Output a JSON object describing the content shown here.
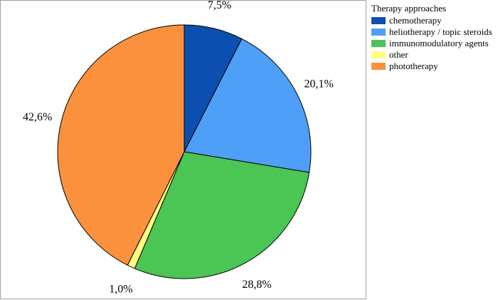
{
  "chart_data": {
    "type": "pie",
    "legend_title": "Therapy approaches",
    "legend_position": "right",
    "start_angle": "top, clockwise",
    "slices": [
      {
        "name": "chemotherapy",
        "value": 7.5,
        "label": "7,5%",
        "color": "#0d4fb0"
      },
      {
        "name": "heliotherapy / topic steroids",
        "value": 20.1,
        "label": "20,1%",
        "color": "#4f9ef7"
      },
      {
        "name": "immunomodulatory agents",
        "value": 28.8,
        "label": "28,8%",
        "color": "#4bc553"
      },
      {
        "name": "other",
        "value": 1.0,
        "label": "1,0%",
        "color": "#ffff80"
      },
      {
        "name": "phototherapy",
        "value": 42.6,
        "label": "42,6%",
        "color": "#fb913c"
      }
    ]
  }
}
